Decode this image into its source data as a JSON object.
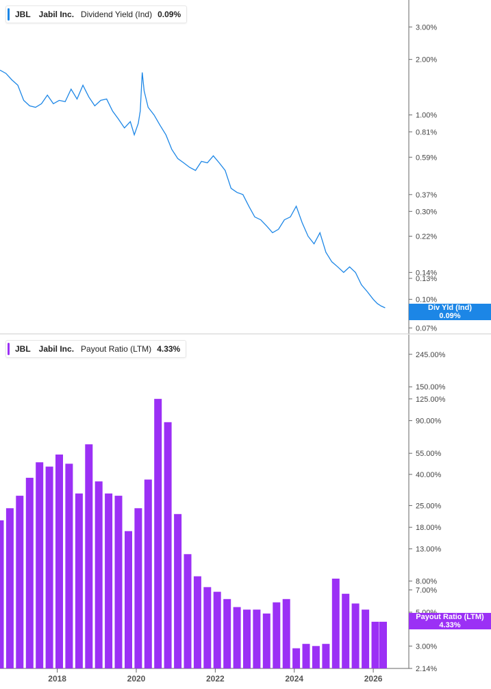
{
  "colors": {
    "yield_line": "#1c86e6",
    "payout_bar": "#9b30f5",
    "axis": "#666666",
    "divider": "#cccccc"
  },
  "chart_data": [
    {
      "type": "line",
      "scale": "log",
      "legend": {
        "ticker": "JBL",
        "company": "Jabil Inc.",
        "metric": "Dividend Yield (Ind)",
        "value": "0.09%"
      },
      "tag": {
        "label": "Div Yld (Ind)",
        "value": "0.09%"
      },
      "y_ticks": [
        {
          "v": 3.0,
          "label": "3.00%"
        },
        {
          "v": 2.0,
          "label": "2.00%"
        },
        {
          "v": 1.0,
          "label": "1.00%"
        },
        {
          "v": 0.81,
          "label": "0.81%"
        },
        {
          "v": 0.59,
          "label": "0.59%"
        },
        {
          "v": 0.37,
          "label": "0.37%"
        },
        {
          "v": 0.3,
          "label": "0.30%"
        },
        {
          "v": 0.22,
          "label": "0.22%"
        },
        {
          "v": 0.14,
          "label": "0.14%"
        },
        {
          "v": 0.13,
          "label": "0.13%"
        },
        {
          "v": 0.1,
          "label": "0.10%"
        },
        {
          "v": 0.07,
          "label": "0.07%"
        }
      ],
      "ylim": [
        0.065,
        4.2
      ],
      "xlim": [
        2016.55,
        2026.9
      ],
      "x": [
        2016.55,
        2016.7,
        2016.85,
        2017.0,
        2017.15,
        2017.3,
        2017.45,
        2017.6,
        2017.75,
        2017.9,
        2018.05,
        2018.2,
        2018.35,
        2018.5,
        2018.65,
        2018.8,
        2018.95,
        2019.1,
        2019.25,
        2019.4,
        2019.55,
        2019.7,
        2019.85,
        2019.95,
        2020.05,
        2020.1,
        2020.15,
        2020.2,
        2020.3,
        2020.45,
        2020.6,
        2020.75,
        2020.9,
        2021.05,
        2021.2,
        2021.35,
        2021.5,
        2021.65,
        2021.8,
        2021.95,
        2022.1,
        2022.25,
        2022.4,
        2022.55,
        2022.7,
        2022.85,
        2023.0,
        2023.15,
        2023.3,
        2023.45,
        2023.6,
        2023.75,
        2023.9,
        2024.05,
        2024.2,
        2024.35,
        2024.5,
        2024.65,
        2024.8,
        2024.95,
        2025.1,
        2025.25,
        2025.4,
        2025.55,
        2025.7,
        2025.85,
        2026.0,
        2026.1,
        2026.2,
        2026.3
      ],
      "y": [
        1.75,
        1.68,
        1.55,
        1.45,
        1.2,
        1.12,
        1.1,
        1.15,
        1.28,
        1.15,
        1.2,
        1.18,
        1.38,
        1.22,
        1.45,
        1.25,
        1.12,
        1.2,
        1.22,
        1.05,
        0.95,
        0.85,
        0.92,
        0.78,
        0.9,
        1.05,
        1.7,
        1.35,
        1.1,
        1.0,
        0.88,
        0.78,
        0.65,
        0.58,
        0.55,
        0.52,
        0.5,
        0.56,
        0.55,
        0.6,
        0.55,
        0.5,
        0.4,
        0.38,
        0.37,
        0.32,
        0.28,
        0.27,
        0.25,
        0.23,
        0.24,
        0.27,
        0.28,
        0.32,
        0.26,
        0.22,
        0.2,
        0.23,
        0.18,
        0.16,
        0.15,
        0.14,
        0.15,
        0.14,
        0.12,
        0.11,
        0.1,
        0.095,
        0.092,
        0.09
      ]
    },
    {
      "type": "bar",
      "scale": "log",
      "legend": {
        "ticker": "JBL",
        "company": "Jabil Inc.",
        "metric": "Payout Ratio (LTM)",
        "value": "4.33%"
      },
      "tag": {
        "label": "Payout Ratio (LTM)",
        "value": "4.33%"
      },
      "y_ticks": [
        {
          "v": 245,
          "label": "245.00%"
        },
        {
          "v": 150,
          "label": "150.00%"
        },
        {
          "v": 125,
          "label": "125.00%"
        },
        {
          "v": 90,
          "label": "90.00%"
        },
        {
          "v": 55,
          "label": "55.00%"
        },
        {
          "v": 40,
          "label": "40.00%"
        },
        {
          "v": 25,
          "label": "25.00%"
        },
        {
          "v": 18,
          "label": "18.00%"
        },
        {
          "v": 13,
          "label": "13.00%"
        },
        {
          "v": 8,
          "label": "8.00%"
        },
        {
          "v": 7,
          "label": "7.00%"
        },
        {
          "v": 5,
          "label": "5.00%"
        },
        {
          "v": 3,
          "label": "3.00%"
        },
        {
          "v": 2.14,
          "label": "2.14%"
        }
      ],
      "ylim": [
        2.14,
        330
      ],
      "xlim": [
        2016.55,
        2026.9
      ],
      "x": [
        2016.55,
        2016.8,
        2017.05,
        2017.3,
        2017.55,
        2017.8,
        2018.05,
        2018.3,
        2018.55,
        2018.8,
        2019.05,
        2019.3,
        2019.55,
        2019.8,
        2020.05,
        2020.3,
        2020.55,
        2020.8,
        2021.05,
        2021.3,
        2021.55,
        2021.8,
        2022.05,
        2022.3,
        2022.55,
        2022.8,
        2023.05,
        2023.3,
        2023.55,
        2023.8,
        2024.05,
        2024.3,
        2024.55,
        2024.8,
        2025.05,
        2025.3,
        2025.55,
        2025.8,
        2026.05,
        2026.25
      ],
      "values": [
        20,
        24,
        29,
        38,
        48,
        45,
        54,
        47,
        30,
        63,
        36,
        30,
        29,
        17,
        24,
        37,
        125,
        88,
        22,
        12,
        8.6,
        7.3,
        6.8,
        6.1,
        5.4,
        5.2,
        5.2,
        4.9,
        5.8,
        6.1,
        2.9,
        3.1,
        3.0,
        3.1,
        8.3,
        6.6,
        5.7,
        5.2,
        4.33,
        4.33
      ],
      "x_ticks": [
        {
          "v": 2018,
          "label": "2018"
        },
        {
          "v": 2020,
          "label": "2020"
        },
        {
          "v": 2022,
          "label": "2022"
        },
        {
          "v": 2024,
          "label": "2024"
        },
        {
          "v": 2026,
          "label": "2026"
        }
      ]
    }
  ]
}
